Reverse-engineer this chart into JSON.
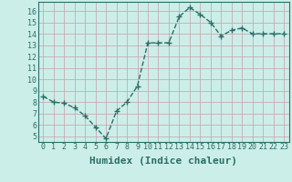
{
  "x": [
    0,
    1,
    2,
    3,
    4,
    5,
    6,
    7,
    8,
    9,
    10,
    11,
    12,
    13,
    14,
    15,
    16,
    17,
    18,
    19,
    20,
    21,
    22,
    23
  ],
  "y": [
    8.5,
    8.0,
    7.9,
    7.5,
    6.8,
    5.8,
    4.8,
    7.2,
    8.0,
    9.4,
    13.2,
    13.2,
    13.2,
    15.5,
    16.3,
    15.7,
    15.0,
    13.8,
    14.3,
    14.5,
    14.0,
    14.0,
    14.0,
    14.0
  ],
  "line_color": "#2a6e68",
  "marker": "+",
  "markersize": 4,
  "linewidth": 1.0,
  "linestyle": "--",
  "xlabel": "Humidex (Indice chaleur)",
  "xlabel_fontsize": 8,
  "ylabel_ticks": [
    5,
    6,
    7,
    8,
    9,
    10,
    11,
    12,
    13,
    14,
    15,
    16
  ],
  "xtick_labels": [
    "0",
    "1",
    "2",
    "3",
    "4",
    "5",
    "6",
    "7",
    "8",
    "9",
    "10",
    "11",
    "12",
    "13",
    "14",
    "15",
    "16",
    "17",
    "18",
    "19",
    "20",
    "21",
    "22",
    "23"
  ],
  "ylim": [
    4.5,
    16.8
  ],
  "xlim": [
    -0.5,
    23.5
  ],
  "bg_color": "#cceee8",
  "grid_color": "#c8aab4",
  "tick_color": "#2a6e68",
  "tick_fontsize": 6,
  "tick_fontfamily": "monospace"
}
